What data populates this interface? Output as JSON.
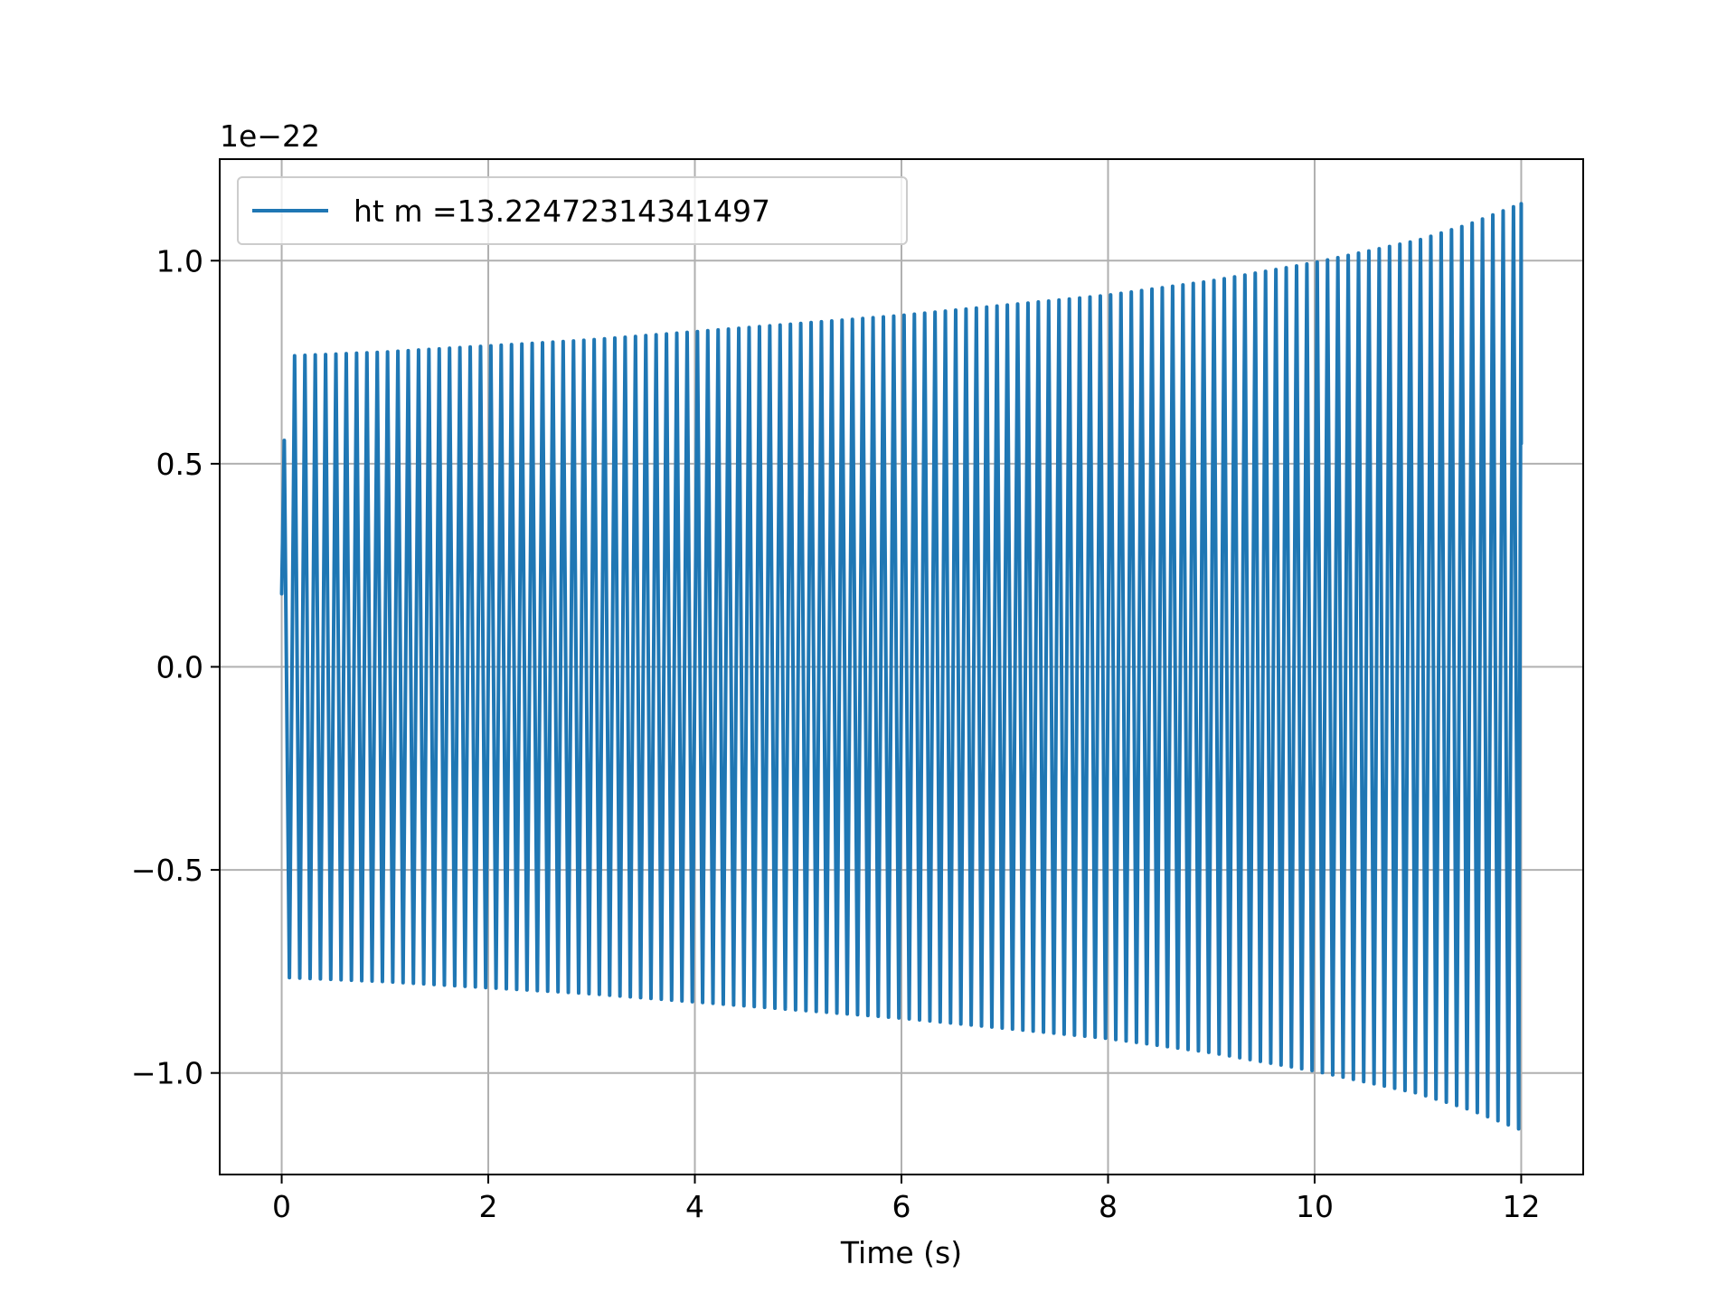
{
  "chart_data": {
    "type": "line",
    "title": "",
    "xlabel": "Time (s)",
    "ylabel": "",
    "y_offset_label": "1e−22",
    "xlim": [
      -0.6,
      12.6
    ],
    "ylim": [
      -1.25,
      1.25
    ],
    "x_ticks": [
      0,
      2,
      4,
      6,
      8,
      10,
      12
    ],
    "x_tick_labels": [
      "0",
      "2",
      "4",
      "6",
      "8",
      "10",
      "12"
    ],
    "y_ticks": [
      -1.0,
      -0.5,
      0.0,
      0.5,
      1.0
    ],
    "y_tick_labels": [
      "−1.0",
      "−0.5",
      "0.0",
      "0.5",
      "1.0"
    ],
    "grid": true,
    "legend_position": "top-left",
    "series": [
      {
        "name": "ht m =13.22472314341497",
        "color": "#1f77b4",
        "t_start": 0,
        "t_end": 12,
        "envelope": {
          "t": [
            0,
            0.05,
            1,
            2,
            3,
            4,
            5,
            6,
            7,
            8,
            9,
            10,
            11,
            11.5,
            12
          ],
          "amplitude": [
            0.35,
            0.765,
            0.775,
            0.79,
            0.805,
            0.825,
            0.845,
            0.865,
            0.89,
            0.915,
            0.95,
            0.995,
            1.05,
            1.09,
            1.14
          ]
        },
        "oscillation_count": 120,
        "end_value": 0.55
      }
    ]
  }
}
